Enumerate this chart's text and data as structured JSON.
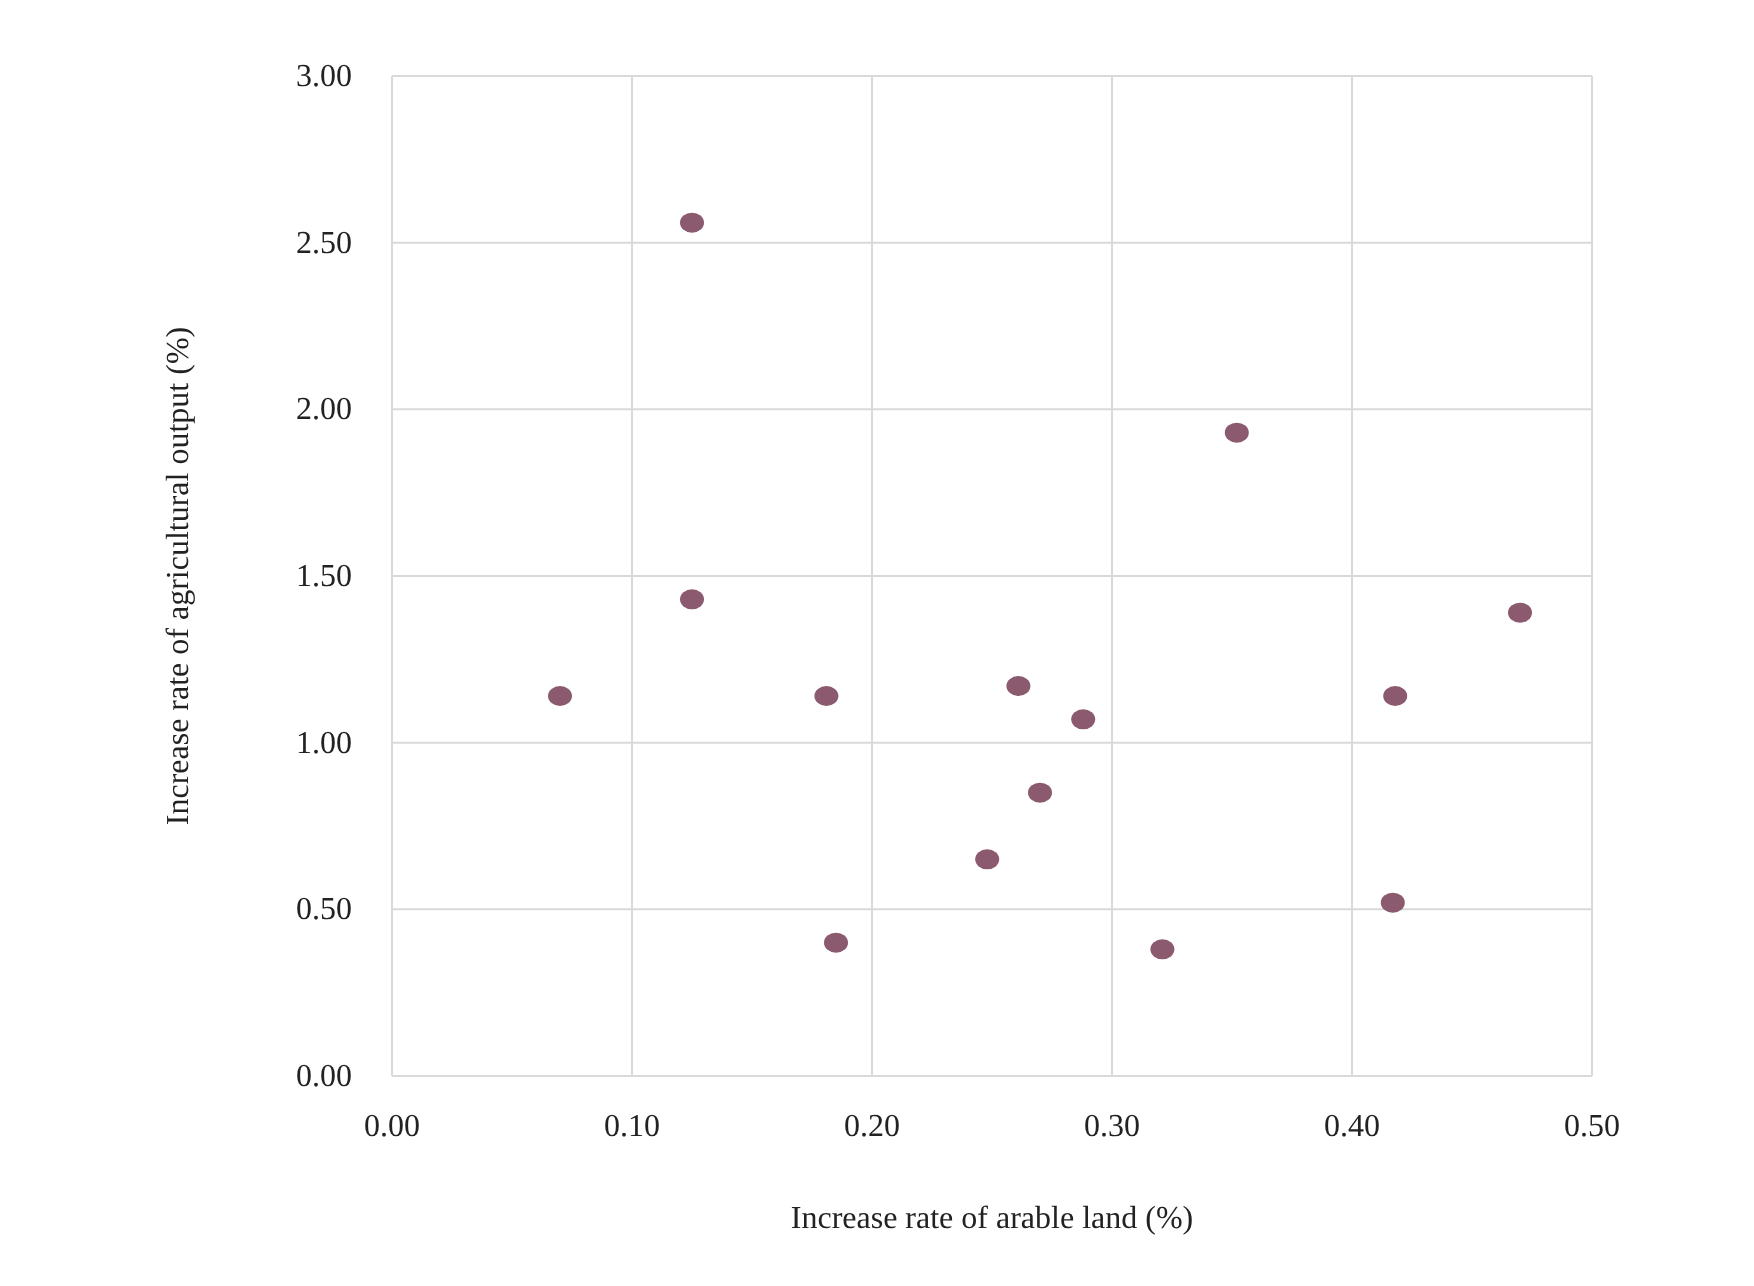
{
  "chart_data": {
    "type": "scatter",
    "xlabel": "Increase rate of arable land (%)",
    "ylabel": "Increase rate of agricultural output (%)",
    "x": [
      0.07,
      0.125,
      0.125,
      0.181,
      0.185,
      0.248,
      0.261,
      0.27,
      0.288,
      0.321,
      0.352,
      0.417,
      0.418,
      0.47
    ],
    "series": [
      {
        "color": "#8b5a6e",
        "values": [
          1.14,
          2.56,
          1.43,
          1.14,
          0.4,
          0.65,
          1.17,
          0.85,
          1.07,
          0.38,
          1.93,
          0.52,
          1.14,
          1.39
        ]
      }
    ],
    "xlim": [
      0,
      0.5
    ],
    "xticks": [
      {
        "value": 0,
        "label": "0.00"
      },
      {
        "value": 0.1,
        "label": "0.10"
      },
      {
        "value": 0.2,
        "label": "0.20"
      },
      {
        "value": 0.3,
        "label": "0.30"
      },
      {
        "value": 0.4,
        "label": "0.40"
      },
      {
        "value": 0.5,
        "label": "0.50"
      }
    ],
    "ylim": [
      0,
      3
    ],
    "yticks": [
      {
        "value": 0,
        "label": "0.00"
      },
      {
        "value": 0.5,
        "label": "0.50"
      },
      {
        "value": 1,
        "label": "1.00"
      },
      {
        "value": 1.5,
        "label": "1.50"
      },
      {
        "value": 2,
        "label": "2.00"
      },
      {
        "value": 2.5,
        "label": "2.50"
      },
      {
        "value": 3,
        "label": "3.00"
      }
    ],
    "grid": true,
    "marker": "circle"
  }
}
